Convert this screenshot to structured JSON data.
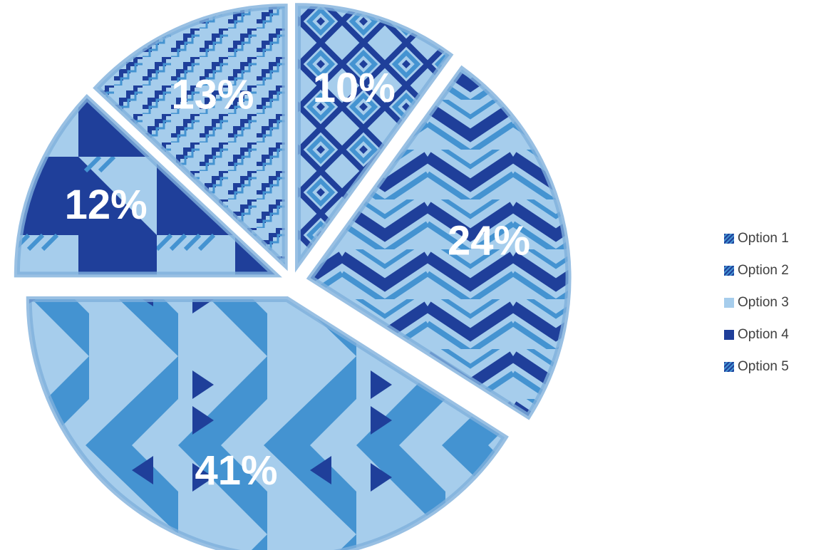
{
  "chart_data": {
    "type": "pie",
    "exploded": true,
    "start_angle_deg": 0,
    "direction": "clockwise",
    "categories": [
      "Option 1",
      "Option 2",
      "Option 3",
      "Option 4",
      "Option 5"
    ],
    "values": [
      10,
      24,
      41,
      12,
      13
    ],
    "data_labels": [
      "10%",
      "24%",
      "41%",
      "12%",
      "13%"
    ],
    "legend": {
      "position": "right",
      "entries": [
        "Option 1",
        "Option 2",
        "Option 3",
        "Option 4",
        "Option 5"
      ]
    },
    "colors": {
      "dark": "#1f3f9a",
      "mid": "#4493d1",
      "light": "#a6cdec",
      "edge": "#7fb0dc"
    },
    "slice_patterns": [
      "diamond-weave",
      "chevron-zigzag",
      "triangle-chevron",
      "checker-stripe",
      "stepped-pyramid"
    ]
  }
}
